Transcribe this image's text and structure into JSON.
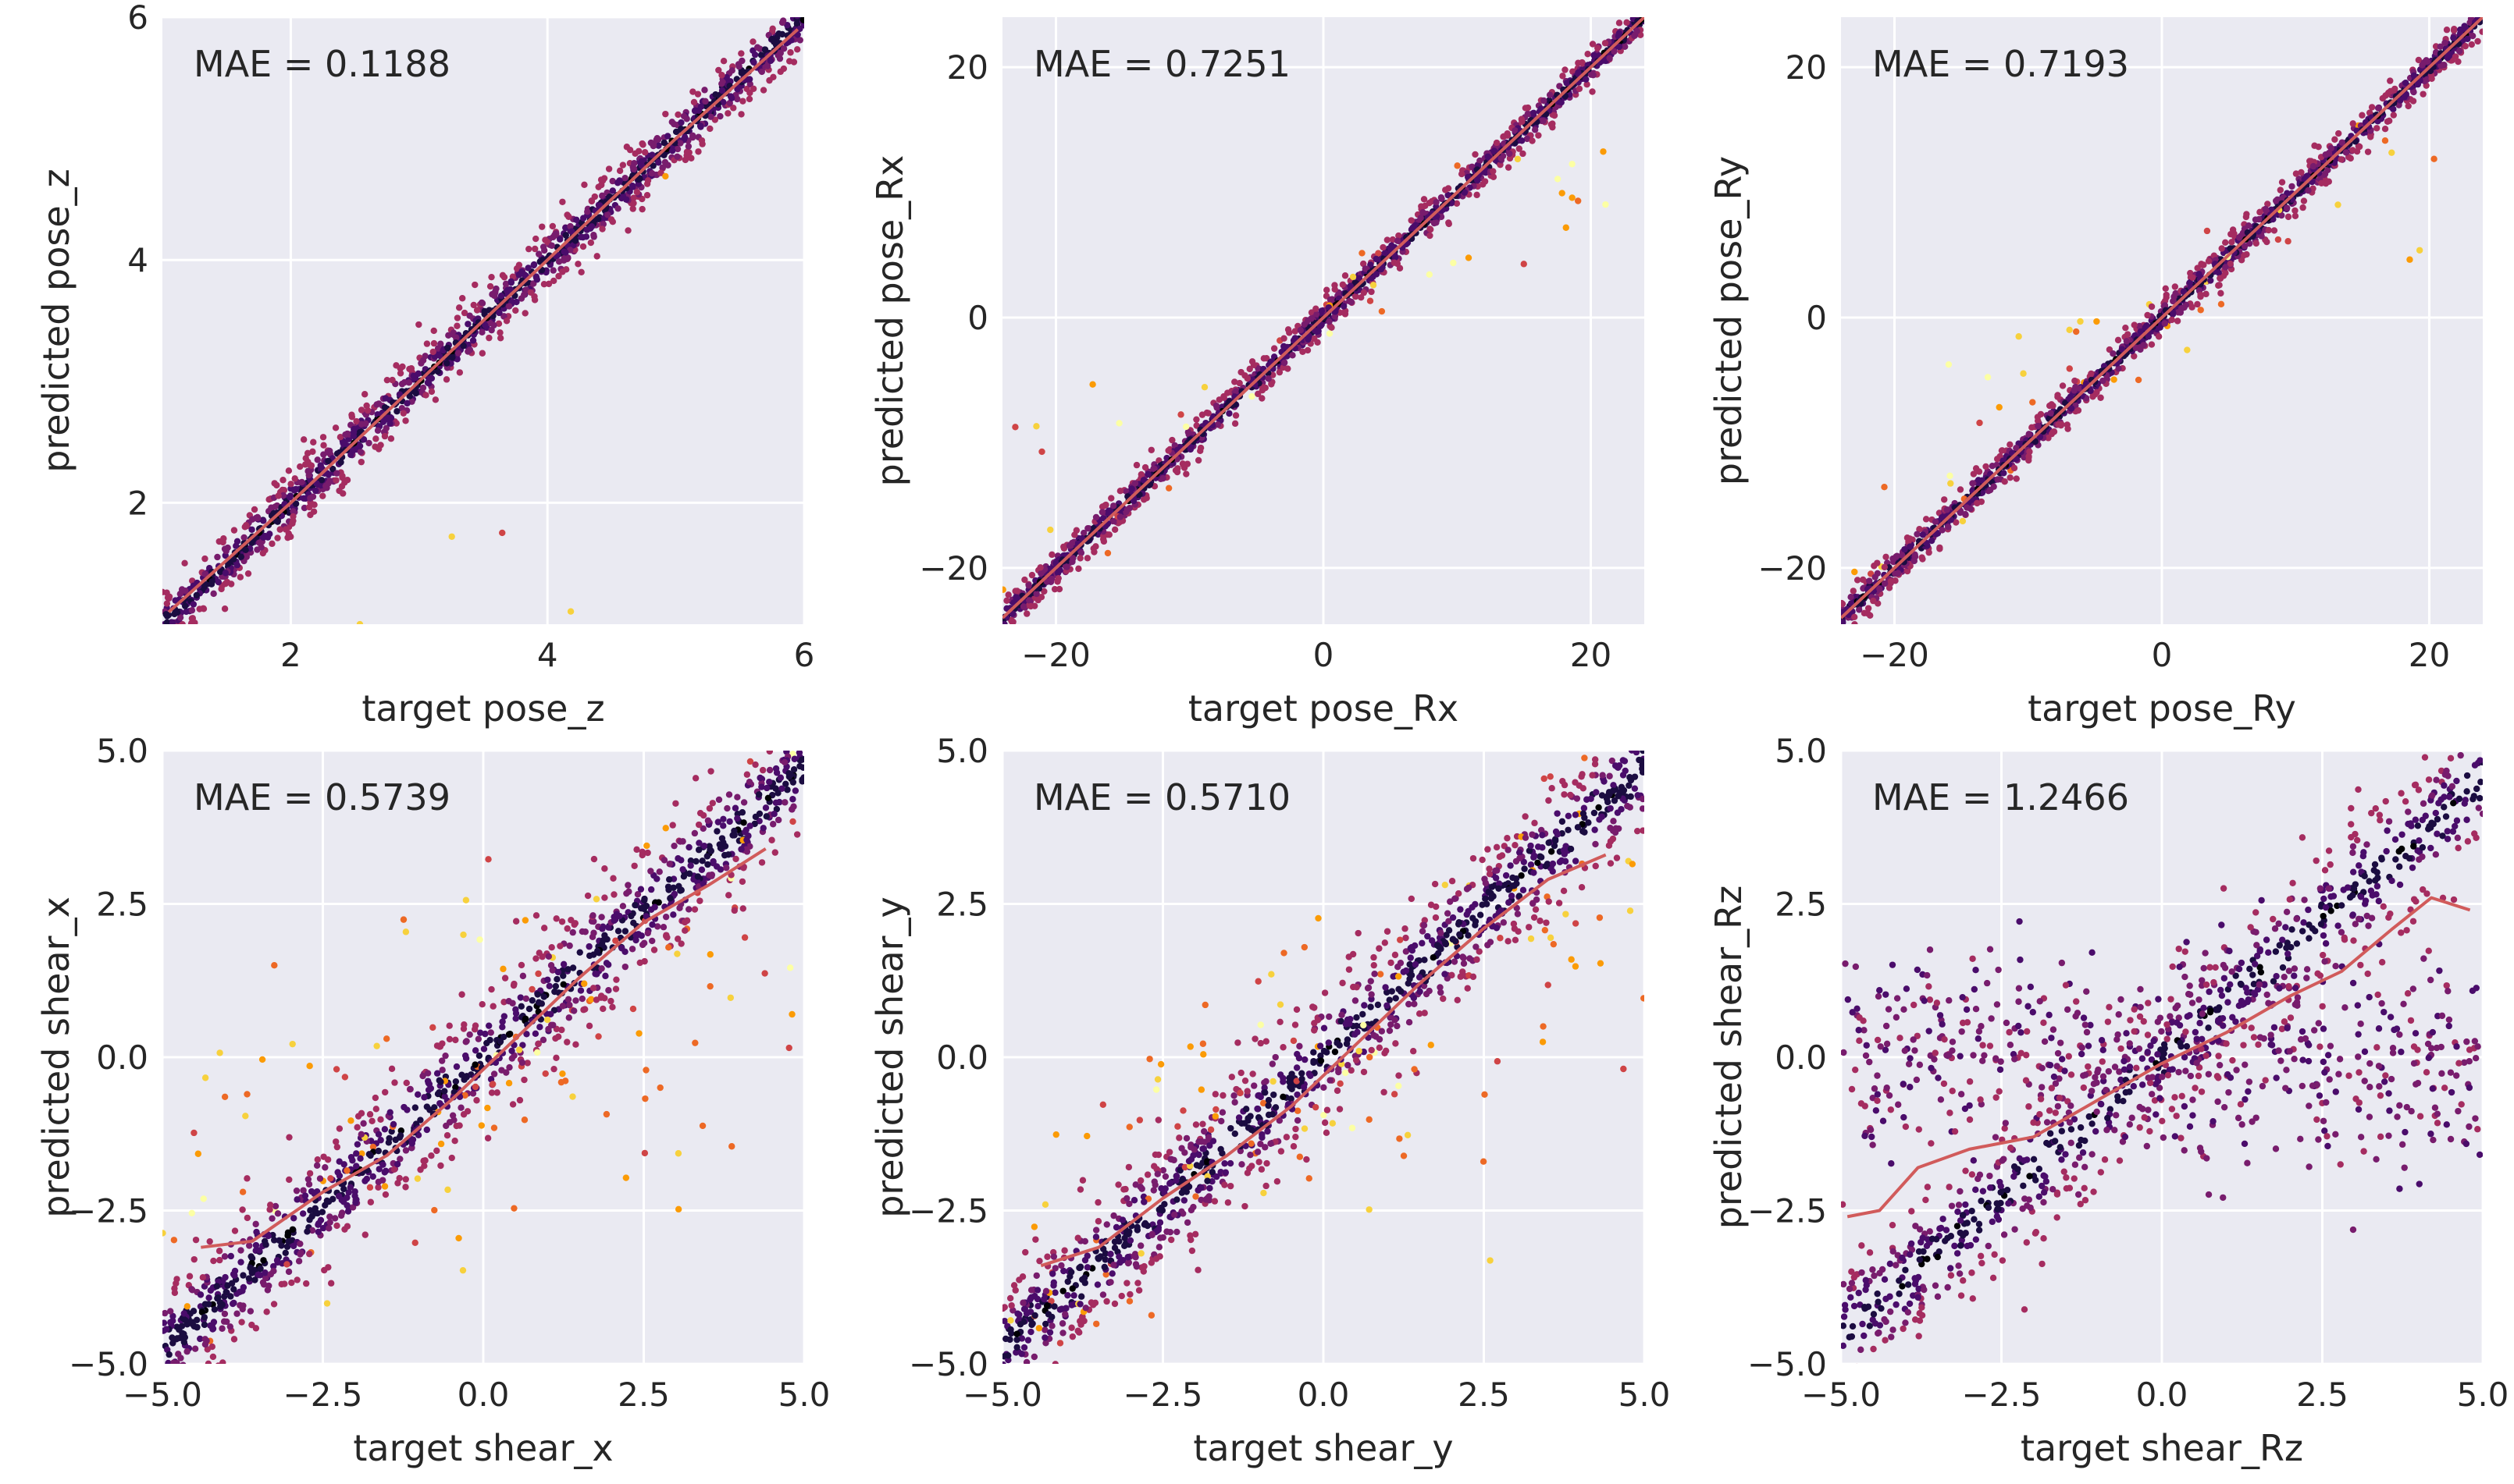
{
  "chart_data": [
    {
      "type": "scatter",
      "title": "",
      "xlabel": "target pose_z",
      "ylabel": "predicted pose_z",
      "annotation": "MAE = 0.1188",
      "xlim": [
        1.0,
        6.0
      ],
      "ylim": [
        1.0,
        6.0
      ],
      "xticks": [
        2,
        4,
        6
      ],
      "xtick_labels": [
        "2",
        "4",
        "6"
      ],
      "yticks": [
        2,
        4,
        6
      ],
      "ytick_labels": [
        "2",
        "4",
        "6"
      ],
      "grid": true,
      "trend_line": {
        "x": [
          1.05,
          2.0,
          3.0,
          4.0,
          5.0,
          5.95
        ],
        "y": [
          1.1,
          2.0,
          3.0,
          4.0,
          5.0,
          5.9
        ]
      },
      "point_cloud": {
        "pattern": "linear",
        "count": 1300,
        "x_range": [
          1.0,
          6.0
        ],
        "slope": 1.0,
        "intercept": 0.0,
        "spread": 0.12,
        "outlier_fraction": 0.005
      }
    },
    {
      "type": "scatter",
      "title": "",
      "xlabel": "target pose_Rx",
      "ylabel": "predicted pose_Rx",
      "annotation": "MAE = 0.7251",
      "xlim": [
        -24.0,
        24.0
      ],
      "ylim": [
        -24.5,
        24.0
      ],
      "xticks": [
        -20,
        0,
        20
      ],
      "xtick_labels": [
        "−20",
        "0",
        "20"
      ],
      "yticks": [
        -20,
        0,
        20
      ],
      "ytick_labels": [
        "−20",
        "0",
        "20"
      ],
      "grid": true,
      "trend_line": {
        "x": [
          -24,
          -12,
          0,
          12,
          24
        ],
        "y": [
          -24,
          -12,
          0,
          12,
          24
        ]
      },
      "point_cloud": {
        "pattern": "linear",
        "count": 1300,
        "x_range": [
          -24.0,
          24.0
        ],
        "slope": 1.0,
        "intercept": 0.0,
        "spread": 0.7,
        "outlier_fraction": 0.03
      }
    },
    {
      "type": "scatter",
      "title": "",
      "xlabel": "target pose_Ry",
      "ylabel": "predicted pose_Ry",
      "annotation": "MAE = 0.7193",
      "xlim": [
        -24.0,
        24.0
      ],
      "ylim": [
        -24.5,
        24.0
      ],
      "xticks": [
        -20,
        0,
        20
      ],
      "xtick_labels": [
        "−20",
        "0",
        "20"
      ],
      "yticks": [
        -20,
        0,
        20
      ],
      "ytick_labels": [
        "−20",
        "0",
        "20"
      ],
      "grid": true,
      "trend_line": {
        "x": [
          -24,
          -12,
          0,
          12,
          24
        ],
        "y": [
          -24,
          -12,
          0,
          12,
          24
        ]
      },
      "point_cloud": {
        "pattern": "linear",
        "count": 1300,
        "x_range": [
          -24.0,
          24.0
        ],
        "slope": 1.0,
        "intercept": 0.0,
        "spread": 0.7,
        "outlier_fraction": 0.03
      }
    },
    {
      "type": "scatter",
      "title": "",
      "xlabel": "target shear_x",
      "ylabel": "predicted shear_x",
      "annotation": "MAE = 0.5739",
      "xlim": [
        -5.0,
        5.0
      ],
      "ylim": [
        -5.0,
        5.0
      ],
      "xticks": [
        -5.0,
        -2.5,
        0.0,
        2.5,
        5.0
      ],
      "xtick_labels": [
        "−5.0",
        "−2.5",
        "0.0",
        "2.5",
        "5.0"
      ],
      "yticks": [
        -5.0,
        -2.5,
        0.0,
        2.5,
        5.0
      ],
      "ytick_labels": [
        "−5.0",
        "−2.5",
        "0.0",
        "2.5",
        "5.0"
      ],
      "grid": true,
      "trend_line": {
        "x": [
          -4.4,
          -3.6,
          -2.5,
          -1.5,
          -0.5,
          0.5,
          1.5,
          2.5,
          3.5,
          4.4
        ],
        "y": [
          -3.1,
          -3.0,
          -2.2,
          -1.6,
          -0.7,
          0.3,
          1.3,
          2.2,
          2.8,
          3.4
        ]
      },
      "point_cloud": {
        "pattern": "linear",
        "count": 1250,
        "x_range": [
          -5.0,
          5.0
        ],
        "slope": 0.95,
        "intercept": 0.0,
        "spread": 0.5,
        "outlier_fraction": 0.1
      }
    },
    {
      "type": "scatter",
      "title": "",
      "xlabel": "target shear_y",
      "ylabel": "predicted shear_y",
      "annotation": "MAE = 0.5710",
      "xlim": [
        -5.0,
        5.0
      ],
      "ylim": [
        -5.0,
        5.0
      ],
      "xticks": [
        -5.0,
        -2.5,
        0.0,
        2.5,
        5.0
      ],
      "xtick_labels": [
        "−5.0",
        "−2.5",
        "0.0",
        "2.5",
        "5.0"
      ],
      "yticks": [
        -5.0,
        -2.5,
        0.0,
        2.5,
        5.0
      ],
      "ytick_labels": [
        "−5.0",
        "−2.5",
        "0.0",
        "2.5",
        "5.0"
      ],
      "grid": true,
      "trend_line": {
        "x": [
          -4.4,
          -3.5,
          -2.5,
          -1.5,
          -0.5,
          0.5,
          1.5,
          2.5,
          3.5,
          4.4
        ],
        "y": [
          -3.4,
          -3.1,
          -2.3,
          -1.6,
          -0.8,
          0.2,
          1.2,
          2.1,
          2.9,
          3.3
        ]
      },
      "point_cloud": {
        "pattern": "linear",
        "count": 1250,
        "x_range": [
          -5.0,
          5.0
        ],
        "slope": 0.95,
        "intercept": 0.0,
        "spread": 0.5,
        "outlier_fraction": 0.1
      }
    },
    {
      "type": "scatter",
      "title": "",
      "xlabel": "target shear_Rz",
      "ylabel": "predicted shear_Rz",
      "annotation": "MAE = 1.2466",
      "xlim": [
        -5.0,
        5.0
      ],
      "ylim": [
        -5.0,
        5.0
      ],
      "xticks": [
        -5.0,
        -2.5,
        0.0,
        2.5,
        5.0
      ],
      "xtick_labels": [
        "−5.0",
        "−2.5",
        "0.0",
        "2.5",
        "5.0"
      ],
      "yticks": [
        -5.0,
        -2.5,
        0.0,
        2.5,
        5.0
      ],
      "ytick_labels": [
        "−5.0",
        "−2.5",
        "0.0",
        "2.5",
        "5.0"
      ],
      "grid": true,
      "trend_line": {
        "x": [
          -4.9,
          -4.4,
          -3.8,
          -3.0,
          -2.0,
          -1.0,
          0.0,
          1.0,
          2.0,
          2.8,
          3.6,
          4.2,
          4.8
        ],
        "y": [
          -2.6,
          -2.5,
          -1.8,
          -1.5,
          -1.3,
          -0.7,
          -0.1,
          0.4,
          1.0,
          1.4,
          2.1,
          2.6,
          2.4
        ]
      },
      "point_cloud": {
        "pattern": "bimodal",
        "count": 1350,
        "x_range": [
          -5.0,
          5.0
        ],
        "slope": 0.9,
        "intercept": 0.0,
        "spread": 0.55,
        "flat_fraction": 0.4,
        "flat_spread": 0.9
      }
    }
  ],
  "colors": {
    "panel_background": "#eaeaf2",
    "grid": "#ffffff",
    "trend_line": "#d15b5b",
    "point_colormap": [
      "#000004",
      "#1b0c41",
      "#4a0c6b",
      "#781c6d",
      "#a52c60",
      "#cf4446",
      "#ed6925",
      "#fb9b06",
      "#f7d13d",
      "#fcffa4"
    ]
  }
}
